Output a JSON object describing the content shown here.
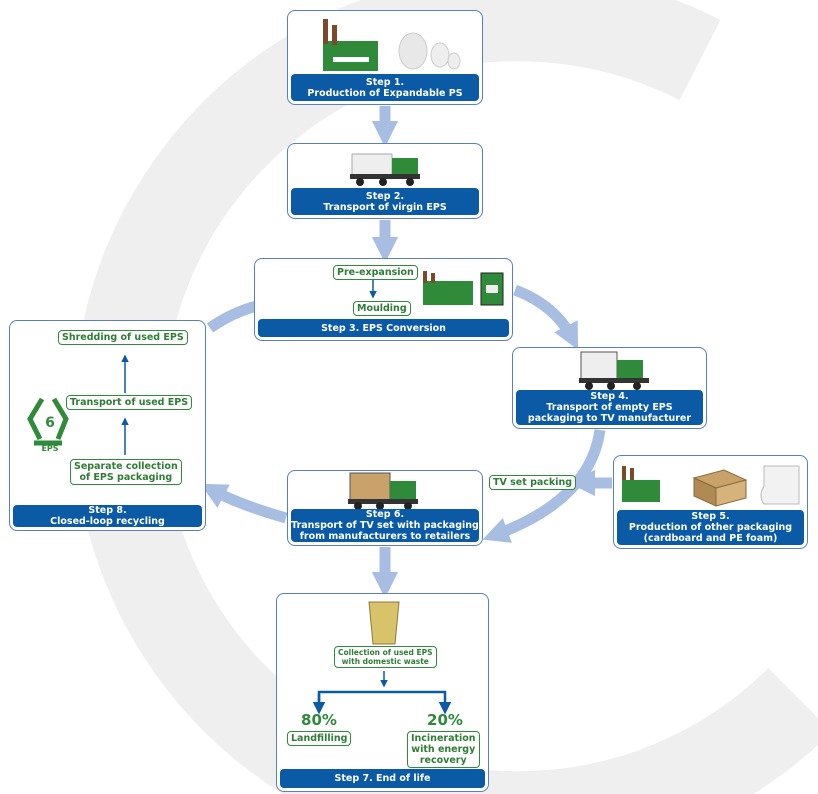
{
  "steps": [
    {
      "lines": [
        "Step 1.",
        "Production of Expandable PS"
      ]
    },
    {
      "lines": [
        "Step 2.",
        "Transport of virgin EPS"
      ]
    },
    {
      "lines": [
        "Step 3. EPS Conversion"
      ],
      "substeps": [
        "Pre-expansion",
        "Moulding"
      ]
    },
    {
      "lines": [
        "Step 4.",
        "Transport of empty EPS",
        "packaging to TV manufacturer"
      ]
    },
    {
      "lines": [
        "Step 5.",
        "Production of other packaging",
        "(cardboard and PE foam)"
      ]
    },
    {
      "lines": [
        "Step 6.",
        "Transport of TV set with packaging",
        "from manufacturers to retailers"
      ],
      "packing": "TV set packing"
    },
    {
      "lines": [
        "Step 7. End of life"
      ],
      "collection": [
        "Collection of used EPS",
        "with domestic waste"
      ],
      "landfill": {
        "share": "80%",
        "label": "Landfilling"
      },
      "incineration": {
        "share": "20%",
        "lines": [
          "Incineration",
          "with energy",
          "recovery"
        ]
      }
    },
    {
      "lines": [
        "Step 8.",
        "Closed-loop recycling"
      ],
      "stages": [
        [
          "Shredding of used EPS"
        ],
        [
          "Transport of used EPS"
        ],
        [
          "Separate collection",
          "of EPS packaging"
        ]
      ],
      "symbol_number": "6",
      "symbol_label": "EPS"
    }
  ]
}
